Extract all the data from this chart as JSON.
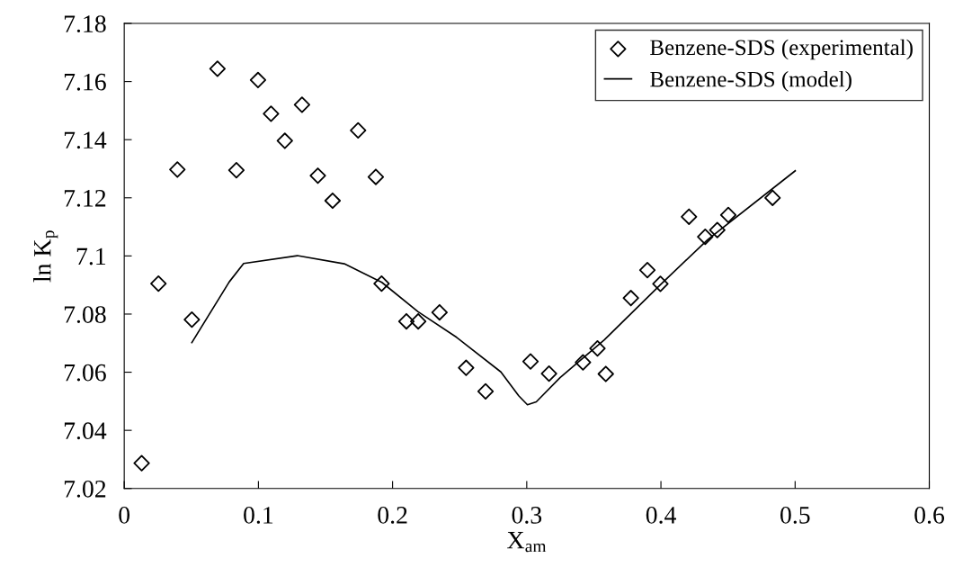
{
  "chart_data": {
    "type": "scatter",
    "xlabel": "X$_{am}$",
    "ylabel": "ln K$_{p}$",
    "xlim": [
      0,
      0.6
    ],
    "xticks": [
      0,
      0.1,
      0.2,
      0.3,
      0.4,
      0.5,
      0.6
    ],
    "ylim": [
      7.02,
      7.18
    ],
    "yticks": [
      7.02,
      7.04,
      7.06,
      7.08,
      7.1,
      7.12,
      7.14,
      7.16,
      7.18
    ],
    "grid": false,
    "legend": "top right",
    "series": [
      {
        "name": "Benzene-SDS (experimental)",
        "marker": "diamond",
        "color": "#000000",
        "x": [
          0.013,
          0.0255,
          0.0396,
          0.0504,
          0.0695,
          0.0836,
          0.0997,
          0.1094,
          0.1197,
          0.1325,
          0.1443,
          0.1553,
          0.1743,
          0.1875,
          0.1918,
          0.2103,
          0.2191,
          0.235,
          0.2548,
          0.2693,
          0.3028,
          0.3166,
          0.3419,
          0.3527,
          0.3589,
          0.3776,
          0.3899,
          0.3996,
          0.4209,
          0.433,
          0.442,
          0.4502,
          0.4832
        ],
        "values": [
          7.0287,
          7.0905,
          7.1297,
          7.0781,
          7.1644,
          7.1295,
          7.1605,
          7.1489,
          7.1396,
          7.152,
          7.1276,
          7.119,
          7.1432,
          7.1272,
          7.0905,
          7.0775,
          7.0775,
          7.0806,
          7.0615,
          7.0534,
          7.0637,
          7.0595,
          7.0634,
          7.0682,
          7.0594,
          7.0855,
          7.0951,
          7.0904,
          7.1135,
          7.1066,
          7.1089,
          7.1141,
          7.12
        ]
      },
      {
        "name": "Benzene-SDS (model)",
        "type": "line",
        "marker": "none",
        "line_style": "solid",
        "color": "#000000",
        "x": [
          0.0504,
          0.0783,
          0.089,
          0.129,
          0.164,
          0.192,
          0.219,
          0.2477,
          0.2807,
          0.294,
          0.3005,
          0.3071,
          0.3248,
          0.3578,
          0.3996,
          0.4348,
          0.5001
        ],
        "values": [
          7.0702,
          7.0911,
          7.0974,
          7.1001,
          7.0973,
          7.0909,
          7.0808,
          7.072,
          7.0601,
          7.0519,
          7.0488,
          7.0498,
          7.0581,
          7.0711,
          7.0901,
          7.1056,
          7.1293
        ]
      }
    ]
  }
}
